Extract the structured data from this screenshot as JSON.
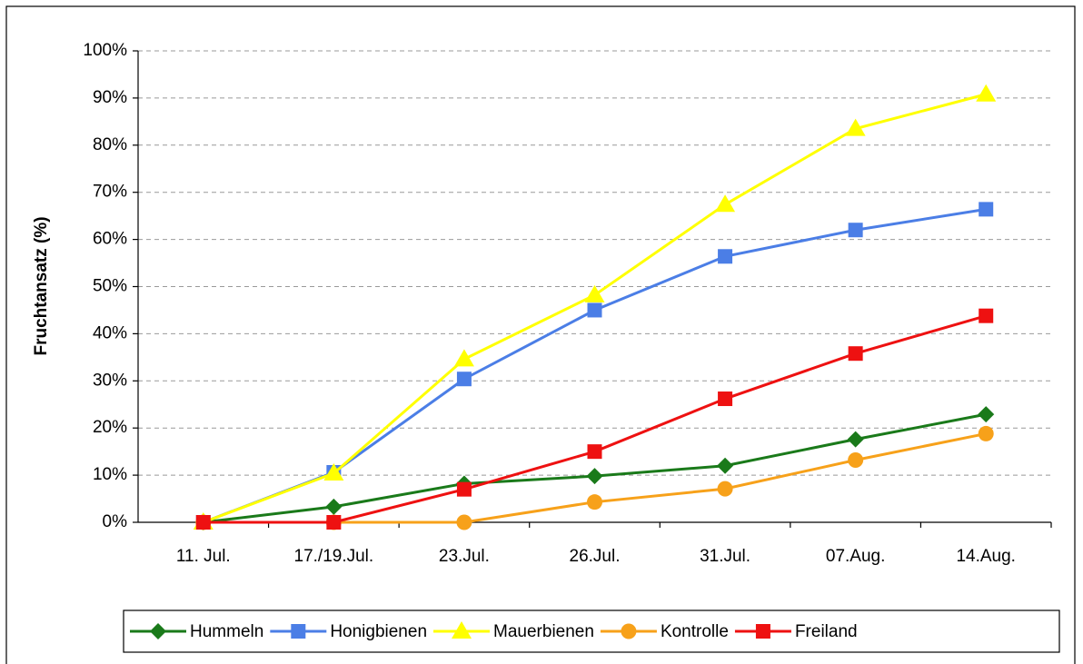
{
  "chart_data": {
    "type": "line",
    "y_label": "Fruchtansatz (%)",
    "categories": [
      "11. Jul.",
      "17./19.Jul.",
      "23.Jul.",
      "26.Jul.",
      "31.Jul.",
      "07.Aug.",
      "14.Aug."
    ],
    "series": [
      {
        "name": "Hummeln",
        "color": "#1a7a1a",
        "marker": "diamond",
        "values": [
          0,
          3.3,
          8.2,
          9.8,
          12,
          17.6,
          22.9
        ]
      },
      {
        "name": "Honigbienen",
        "color": "#4b7ee6",
        "marker": "square",
        "values": [
          0,
          10.6,
          30.4,
          45,
          56.4,
          62,
          66.4
        ]
      },
      {
        "name": "Mauerbienen",
        "color": "#ffff00",
        "marker": "triangle",
        "values": [
          0,
          10.4,
          34.6,
          48.2,
          67.4,
          83.5,
          90.8
        ]
      },
      {
        "name": "Kontrolle",
        "color": "#f7a11a",
        "marker": "circle",
        "values": [
          0,
          0,
          0,
          4.3,
          7.1,
          13.2,
          18.8
        ]
      },
      {
        "name": "Freiland",
        "color": "#ee1111",
        "marker": "square",
        "values": [
          0,
          0,
          7,
          15,
          26.2,
          35.8,
          43.8
        ]
      }
    ],
    "ylim": [
      0,
      100
    ],
    "yticks": [
      {
        "value": 0,
        "label": "0%"
      },
      {
        "value": 10,
        "label": "10%"
      },
      {
        "value": 20,
        "label": "20%"
      },
      {
        "value": 30,
        "label": "30%"
      },
      {
        "value": 40,
        "label": "40%"
      },
      {
        "value": 50,
        "label": "50%"
      },
      {
        "value": 60,
        "label": "60%"
      },
      {
        "value": 70,
        "label": "70%"
      },
      {
        "value": 80,
        "label": "80%"
      },
      {
        "value": 90,
        "label": "90%"
      },
      {
        "value": 100,
        "label": "100%"
      }
    ],
    "grid": true,
    "legend": "bottom"
  }
}
